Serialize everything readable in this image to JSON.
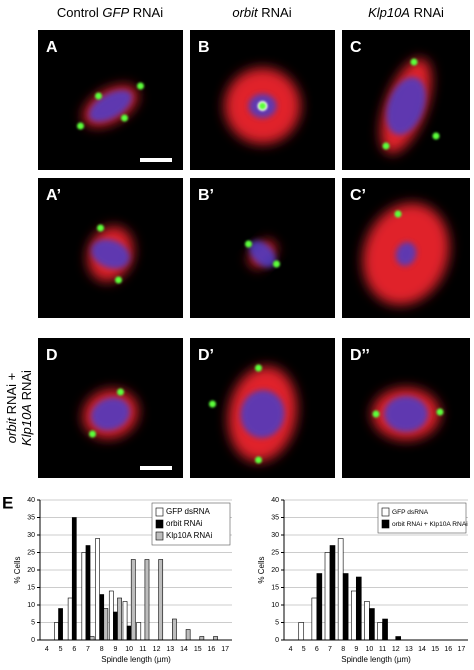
{
  "columns": [
    [
      {
        "text": "Control ",
        "italic": false
      },
      {
        "text": "GFP",
        "italic": true
      },
      {
        "text": " RNAi",
        "italic": false
      }
    ],
    [
      {
        "text": "orbit",
        "italic": true
      },
      {
        "text": " RNAi",
        "italic": false
      }
    ],
    [
      {
        "text": "Klp10A",
        "italic": true
      },
      {
        "text": " RNAi",
        "italic": false
      }
    ]
  ],
  "panels": [
    "A",
    "B",
    "C",
    "A’",
    "B’",
    "C’",
    "D",
    "D’",
    "D’’"
  ],
  "row_label": [
    [
      {
        "text": "orbit",
        "italic": true
      },
      {
        "text": " RNAi +",
        "italic": false
      }
    ],
    [
      {
        "text": "Klp10A",
        "italic": true
      },
      {
        "text": " RNAi",
        "italic": false
      }
    ]
  ],
  "figure_label": "E",
  "chart_data": [
    {
      "type": "bar",
      "xlabel": "Spindle length (µm)",
      "ylabel": "% Cells",
      "categories": [
        4,
        5,
        6,
        7,
        8,
        9,
        10,
        11,
        12,
        13,
        14,
        15,
        16,
        17
      ],
      "series": [
        {
          "name": "GFP dsRNA",
          "color": "#ffffff",
          "values": [
            0,
            5,
            12,
            25,
            29,
            14,
            11,
            5,
            0,
            0,
            0,
            0,
            0,
            0
          ]
        },
        {
          "name": "orbit RNAi",
          "color": "#000000",
          "values": [
            0,
            9,
            35,
            27,
            13,
            8,
            4,
            0,
            0,
            0,
            0,
            0,
            0,
            0
          ]
        },
        {
          "name": "Klp10A RNAi",
          "color": "#bdbdbd",
          "values": [
            0,
            0,
            0,
            1,
            9,
            12,
            23,
            23,
            23,
            6,
            3,
            1,
            1,
            0
          ]
        }
      ],
      "ylim": [
        0,
        40
      ],
      "yticks": [
        0,
        5,
        10,
        15,
        20,
        25,
        30,
        35,
        40
      ],
      "grid": true,
      "legend": "top-right"
    },
    {
      "type": "bar",
      "xlabel": "Spindle length (µm)",
      "ylabel": "% Cells",
      "categories": [
        4,
        5,
        6,
        7,
        8,
        9,
        10,
        11,
        12,
        13,
        14,
        15,
        16,
        17
      ],
      "series": [
        {
          "name": "GFP dsRNA",
          "color": "#ffffff",
          "values": [
            0,
            5,
            12,
            25,
            29,
            14,
            11,
            5,
            0,
            0,
            0,
            0,
            0,
            0
          ]
        },
        {
          "name": "orbit RNAi + Klp10A RNAi",
          "color": "#000000",
          "values": [
            0,
            0,
            19,
            27,
            19,
            18,
            9,
            6,
            1,
            0,
            0,
            0,
            0,
            0
          ]
        }
      ],
      "ylim": [
        0,
        40
      ],
      "yticks": [
        0,
        5,
        10,
        15,
        20,
        25,
        30,
        35,
        40
      ],
      "grid": true,
      "legend": "top-right"
    }
  ]
}
